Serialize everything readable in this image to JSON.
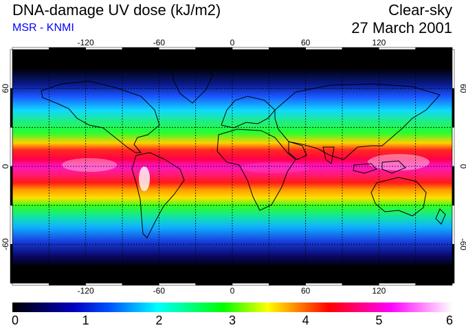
{
  "header": {
    "title": "DNA-damage UV dose (kJ/m2)",
    "subtitle": "MSR - KNMI",
    "condition": "Clear-sky",
    "date": "27 March 2001"
  },
  "map": {
    "projection": "equirectangular",
    "lon_range": [
      -180,
      180
    ],
    "lat_range": [
      -90,
      90
    ],
    "lon_ticks": [
      "-120",
      "-60",
      "0",
      "60",
      "120"
    ],
    "lat_ticks": [
      "60",
      "0",
      "-60"
    ],
    "gridlines": "dashed every 30 degrees",
    "background": "#000000",
    "coastlines_color": "#000000"
  },
  "colorbar": {
    "min": 0,
    "max": 6,
    "tick_labels": [
      "0",
      "1",
      "2",
      "3",
      "4",
      "5",
      "6"
    ],
    "colors": [
      "#000000",
      "#0000cc",
      "#00ffff",
      "#00ff00",
      "#ffff00",
      "#ff0000",
      "#ff00ff",
      "#ffffff"
    ]
  }
}
